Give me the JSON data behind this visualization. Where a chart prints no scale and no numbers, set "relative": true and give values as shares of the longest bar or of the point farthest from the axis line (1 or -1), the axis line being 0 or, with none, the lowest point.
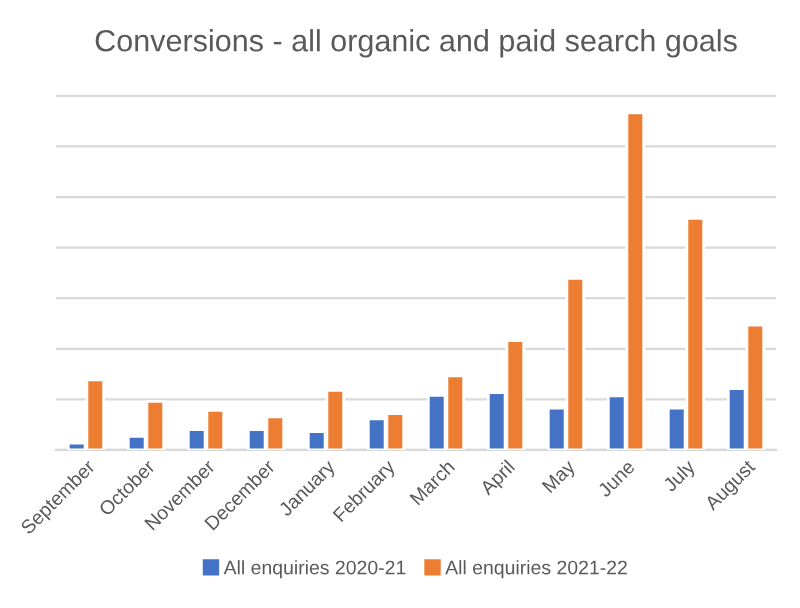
{
  "chart_data": {
    "type": "bar",
    "title": "Conversions - all organic and paid search goals",
    "relative": true,
    "grid": "y",
    "legend": "bottom",
    "categories": [
      "September",
      "October",
      "November",
      "December",
      "January",
      "February",
      "March",
      "April",
      "May",
      "June",
      "July",
      "August"
    ],
    "series": [
      {
        "name": "All enquiries 2020-21",
        "color": "#4472c4",
        "values": [
          0.02,
          0.04,
          0.06,
          0.06,
          0.054,
          0.092,
          0.162,
          0.17,
          0.124,
          0.16,
          0.124,
          0.182
        ]
      },
      {
        "name": "All enquiries 2021-22",
        "color": "#ed7d31",
        "values": [
          0.208,
          0.144,
          0.117,
          0.098,
          0.177,
          0.108,
          0.22,
          0.324,
          0.509,
          1,
          0.687,
          0.37
        ]
      }
    ]
  }
}
